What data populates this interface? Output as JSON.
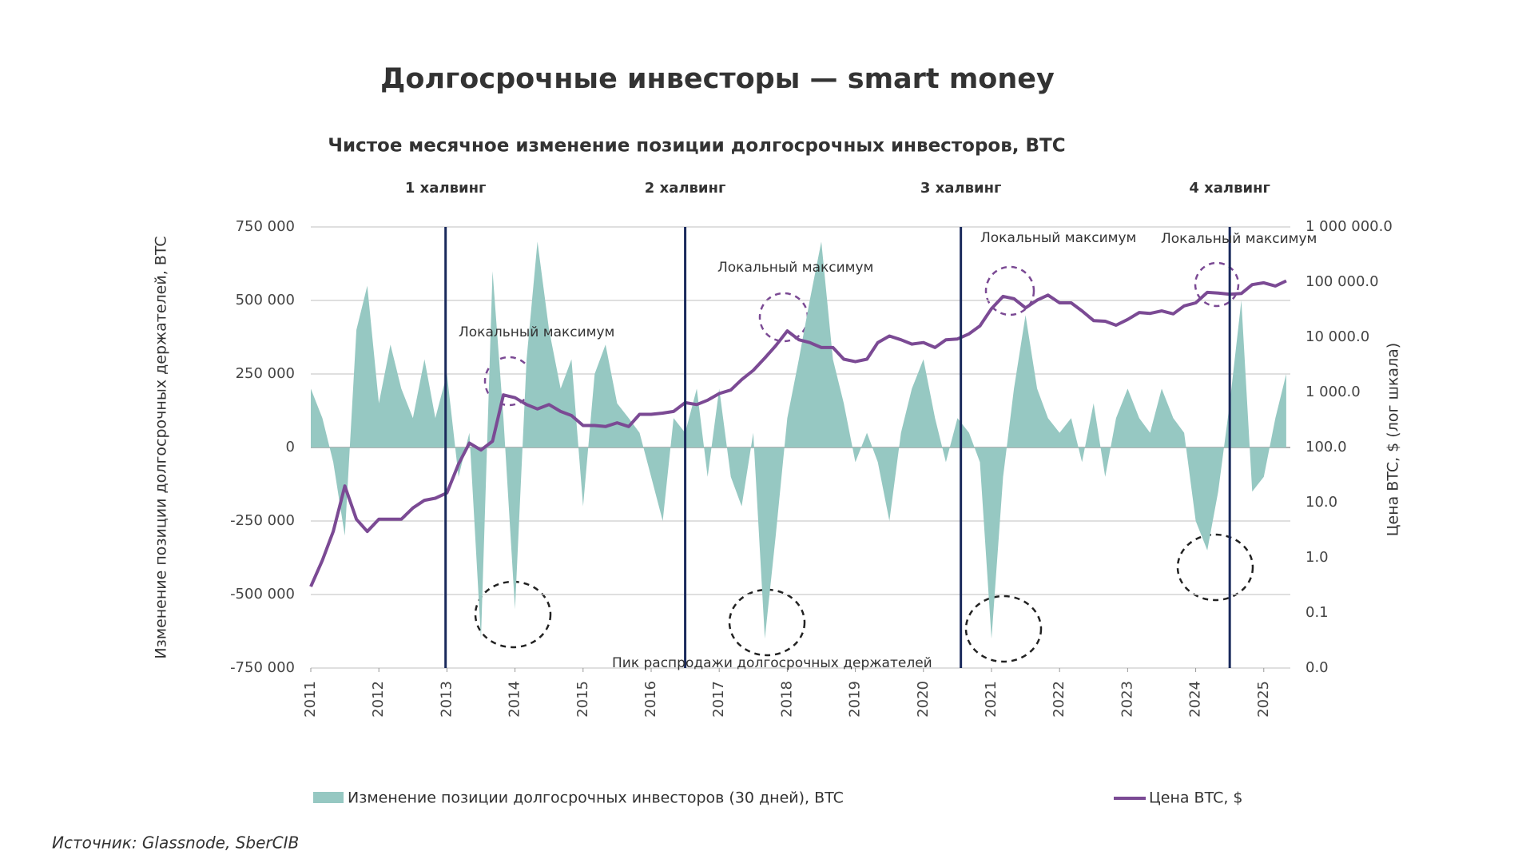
{
  "chart_data": {
    "type": "combo",
    "title": "Долгосрочные инвесторы — smart money",
    "subtitle": "Чистое месячное изменение позиции долгосрочных инвесторов, BTC",
    "ylabel": "Изменение позиции долгосрочных держателей, BTC",
    "y2label": "Цена BTC, $ (лог шкала)",
    "source": "Источник: Glassnode, SberCIB",
    "y2log": true,
    "grid": true,
    "xlim": [
      2011,
      2025.39
    ],
    "xticks": [
      2011,
      2012,
      2013,
      2014,
      2015,
      2016,
      2017,
      2018,
      2019,
      2020,
      2021,
      2022,
      2023,
      2024,
      2025
    ],
    "ylim": [
      -750000,
      750000
    ],
    "yticks": [
      {
        "value": -750000,
        "label": "-750 000"
      },
      {
        "value": -500000,
        "label": "-500 000"
      },
      {
        "value": -250000,
        "label": "-250 000"
      },
      0,
      {
        "value": 250000,
        "label": "250 000"
      },
      {
        "value": 500000,
        "label": "500 000"
      },
      {
        "value": 750000,
        "label": "750 000"
      }
    ],
    "y2lim": [
      0.01,
      1000000
    ],
    "y2ticks": [
      {
        "value": 0.01,
        "label": "0.0"
      },
      {
        "value": 0.1,
        "label": "0.1"
      },
      {
        "value": 1,
        "label": "1.0"
      },
      {
        "value": 10,
        "label": "10.0"
      },
      {
        "value": 100,
        "label": "100.0"
      },
      {
        "value": 1000,
        "label": "1 000.0"
      },
      {
        "value": 10000,
        "label": "10 000.0"
      },
      {
        "value": 100000,
        "label": "100 000.0"
      },
      {
        "value": 1000000,
        "label": "1 000 000.0"
      }
    ],
    "halvings": [
      {
        "label": "1 халвинг",
        "x": 2012.98
      },
      {
        "label": "2 халвинг",
        "x": 2016.5
      },
      {
        "label": "3 халвинг",
        "x": 2020.55
      },
      {
        "label": "4 халвинг",
        "x": 2024.5
      }
    ],
    "annotations": [
      "Локальный максимум",
      "Локальный максимум",
      "Локальный максимум",
      "Локальный максимум",
      "Пик распродажи долгосрочных держателей"
    ],
    "x": [
      2011,
      2011.17,
      2011.33,
      2011.5,
      2011.67,
      2011.83,
      2012,
      2012.17,
      2012.33,
      2012.5,
      2012.67,
      2012.83,
      2013,
      2013.17,
      2013.33,
      2013.5,
      2013.67,
      2013.83,
      2014,
      2014.17,
      2014.33,
      2014.5,
      2014.67,
      2014.83,
      2015,
      2015.17,
      2015.33,
      2015.5,
      2015.67,
      2015.83,
      2016,
      2016.17,
      2016.33,
      2016.5,
      2016.67,
      2016.83,
      2017,
      2017.17,
      2017.33,
      2017.5,
      2017.67,
      2017.83,
      2018,
      2018.17,
      2018.33,
      2018.5,
      2018.67,
      2018.83,
      2019,
      2019.17,
      2019.33,
      2019.5,
      2019.67,
      2019.83,
      2020,
      2020.17,
      2020.33,
      2020.5,
      2020.67,
      2020.83,
      2021,
      2021.17,
      2021.33,
      2021.5,
      2021.67,
      2021.83,
      2022,
      2022.17,
      2022.33,
      2022.5,
      2022.67,
      2022.83,
      2023,
      2023.17,
      2023.33,
      2023.5,
      2023.67,
      2023.83,
      2024,
      2024.17,
      2024.33,
      2024.5,
      2024.67,
      2024.83,
      2025,
      2025.17,
      2025.33
    ],
    "series": [
      {
        "name": "Изменение позиции долгосрочных инвесторов (30 дней), BTC",
        "type": "area",
        "color": "#96c8c2",
        "values": [
          200000,
          100000,
          -50000,
          -300000,
          400000,
          550000,
          150000,
          350000,
          200000,
          100000,
          300000,
          100000,
          250000,
          -100000,
          50000,
          -650000,
          600000,
          100000,
          -550000,
          300000,
          700000,
          400000,
          200000,
          300000,
          -200000,
          250000,
          350000,
          150000,
          100000,
          50000,
          -100000,
          -250000,
          100000,
          50000,
          200000,
          -100000,
          200000,
          -100000,
          -200000,
          50000,
          -650000,
          -300000,
          100000,
          300000,
          500000,
          700000,
          300000,
          150000,
          -50000,
          50000,
          -50000,
          -250000,
          50000,
          200000,
          300000,
          100000,
          -50000,
          100000,
          50000,
          -50000,
          -650000,
          -100000,
          200000,
          450000,
          200000,
          100000,
          50000,
          100000,
          -50000,
          150000,
          -100000,
          100000,
          200000,
          100000,
          50000,
          200000,
          100000,
          50000,
          -250000,
          -350000,
          -150000,
          150000,
          500000,
          -150000,
          -100000,
          100000,
          250000
        ]
      },
      {
        "name": "Цена BTC, $",
        "type": "line",
        "axis": "y2",
        "color": "#7b4a94",
        "values": [
          0.3,
          0.9,
          3,
          20,
          5,
          3,
          5,
          5,
          5,
          8,
          11,
          12,
          15,
          50,
          120,
          90,
          130,
          900,
          800,
          600,
          500,
          600,
          450,
          380,
          250,
          250,
          240,
          280,
          240,
          400,
          400,
          420,
          450,
          650,
          600,
          720,
          950,
          1100,
          1700,
          2500,
          4200,
          7000,
          13000,
          9000,
          8000,
          6500,
          6500,
          4000,
          3600,
          4000,
          8000,
          10500,
          9000,
          7500,
          8000,
          6500,
          9000,
          9300,
          11500,
          16000,
          33000,
          55000,
          50000,
          34000,
          47000,
          58000,
          42000,
          42000,
          30000,
          20000,
          19500,
          16500,
          21000,
          28000,
          27000,
          30000,
          26500,
          37000,
          42000,
          65000,
          63000,
          60000,
          62000,
          90000,
          97000,
          85000,
          105000
        ]
      }
    ]
  }
}
